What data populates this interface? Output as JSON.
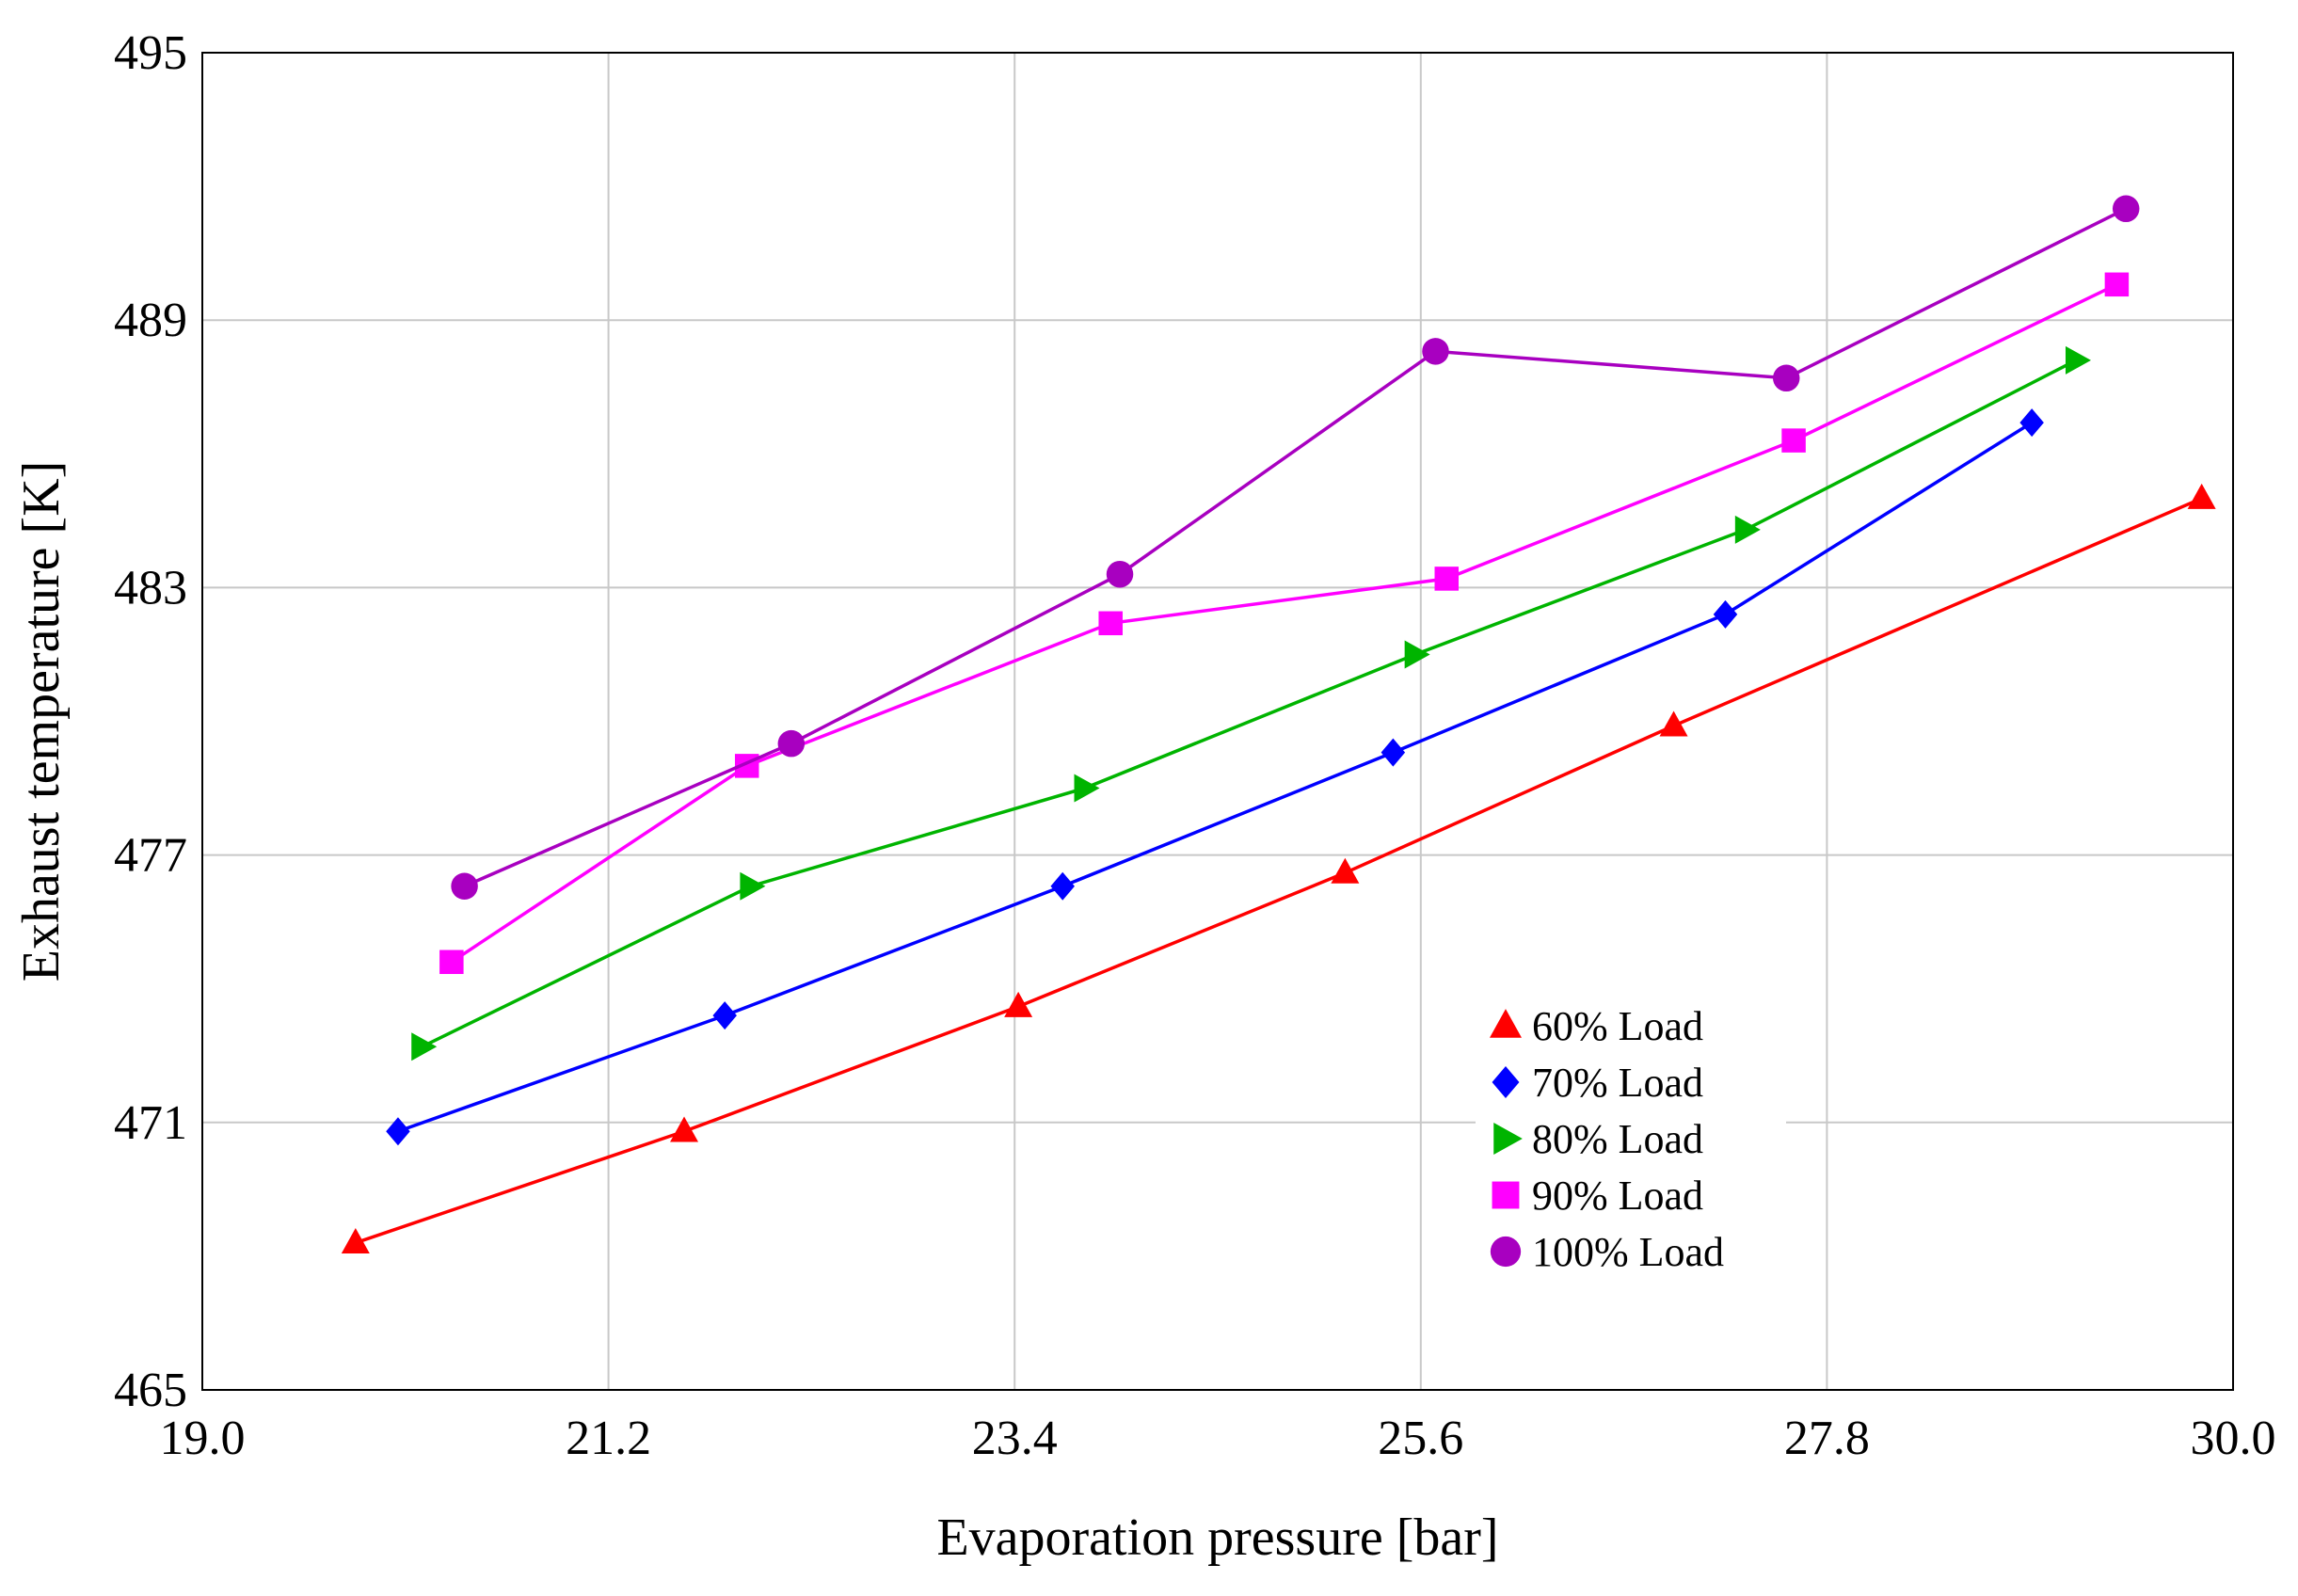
{
  "chart_data": {
    "type": "line",
    "title": "",
    "xlabel": "Evaporation pressure [bar]",
    "ylabel": "Exhaust temperature [K]",
    "xlim": [
      19.0,
      30.0
    ],
    "ylim": [
      465,
      495
    ],
    "xticks": [
      19.0,
      21.2,
      23.4,
      25.6,
      27.8,
      30.0
    ],
    "xtick_labels": [
      "19.0",
      "21.2",
      "23.4",
      "25.6",
      "27.8",
      "30.0"
    ],
    "yticks": [
      465,
      471,
      477,
      483,
      489,
      495
    ],
    "ytick_labels": [
      "465",
      "471",
      "477",
      "483",
      "489",
      "495"
    ],
    "grid": true,
    "legend_position": "bottom-center-right",
    "series": [
      {
        "name": "60% Load",
        "color": "#ff0000",
        "marker": "triangle-up",
        "x": [
          19.83,
          21.61,
          23.42,
          25.19,
          26.97,
          29.83
        ],
        "y": [
          468.3,
          470.8,
          473.6,
          476.6,
          479.9,
          485.0
        ]
      },
      {
        "name": "70% Load",
        "color": "#0000ff",
        "marker": "diamond",
        "x": [
          20.06,
          21.83,
          23.66,
          25.45,
          27.25,
          28.91
        ],
        "y": [
          470.8,
          473.4,
          476.3,
          479.3,
          482.4,
          486.7
        ]
      },
      {
        "name": "80% Load",
        "color": "#00b400",
        "marker": "triangle-right",
        "x": [
          20.19,
          21.97,
          23.78,
          25.57,
          27.36,
          29.15
        ],
        "y": [
          472.7,
          476.3,
          478.5,
          481.5,
          484.3,
          488.1
        ]
      },
      {
        "name": "90% Load",
        "color": "#ff00ff",
        "marker": "square",
        "x": [
          20.35,
          21.95,
          23.92,
          25.74,
          27.62,
          29.37
        ],
        "y": [
          474.6,
          479.0,
          482.2,
          483.2,
          486.3,
          489.8
        ]
      },
      {
        "name": "100% Load",
        "color": "#a800c0",
        "marker": "circle",
        "x": [
          20.42,
          22.19,
          23.97,
          25.68,
          27.58,
          29.42
        ],
        "y": [
          476.3,
          479.5,
          483.3,
          488.3,
          487.7,
          491.5
        ]
      }
    ]
  }
}
